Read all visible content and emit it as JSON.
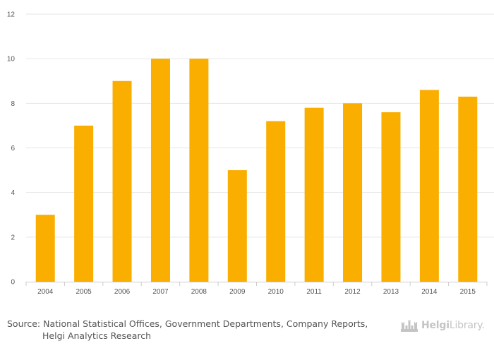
{
  "chart_data": {
    "type": "bar",
    "categories": [
      "2004",
      "2005",
      "2006",
      "2007",
      "2008",
      "2009",
      "2010",
      "2011",
      "2012",
      "2013",
      "2014",
      "2015"
    ],
    "values": [
      3.0,
      7.0,
      9.0,
      10.0,
      10.0,
      5.0,
      7.2,
      7.8,
      8.0,
      7.6,
      8.6,
      8.3
    ],
    "ylim": [
      0,
      12
    ],
    "yticks": [
      "0",
      "2",
      "4",
      "6",
      "8",
      "10",
      "12"
    ],
    "grid": true,
    "title": "",
    "xlabel": "",
    "ylabel": "",
    "bar_color": "#f9ae00",
    "grid_color": "#e6e6e6",
    "axis_color": "#cccccc"
  },
  "footer": {
    "source_line1": "Source: National Statistical Offices, Government Departments, Company Reports,",
    "source_line2": "Helgi Analytics Research"
  },
  "logo": {
    "brand_bold": "Helgi",
    "brand_rest": "Library.",
    "icon": "helgi-castle-icon",
    "color": "#c4c4c4"
  }
}
